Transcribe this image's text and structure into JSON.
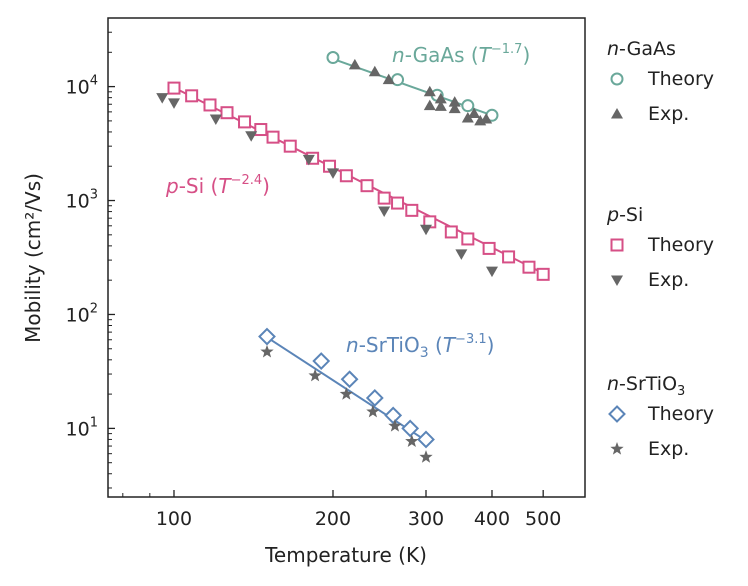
{
  "chart_data": {
    "type": "scatter",
    "title": "",
    "xlabel": "Temperature (K)",
    "ylabel": "Mobility (cm²/Vs)",
    "xscale": "log",
    "yscale": "log",
    "xlim": [
      75,
      600
    ],
    "ylim": [
      2.5,
      40000
    ],
    "xticks": [
      {
        "value": 100,
        "label": "100"
      },
      {
        "value": 200,
        "label": "200"
      },
      {
        "value": 300,
        "label": "300"
      },
      {
        "value": 400,
        "label": "400"
      },
      {
        "value": 500,
        "label": "500"
      }
    ],
    "yticks": [
      {
        "value": 10,
        "exp": "1"
      },
      {
        "value": 100,
        "exp": "2"
      },
      {
        "value": 1000,
        "exp": "3"
      },
      {
        "value": 10000,
        "exp": "4"
      }
    ],
    "ytick_base": "10",
    "legend_position": "right",
    "groups": [
      {
        "id": "gaas",
        "color": "#6aa89a",
        "legend_title_pre": "n",
        "legend_title_post": "-GaAs",
        "annotation": {
          "pre": "n",
          "mid": "-GaAs (",
          "T": "T",
          "exp": "−1.7",
          "post": ")"
        },
        "fit": {
          "x": [
            200,
            400
          ],
          "y": [
            17500,
            5600
          ]
        },
        "theory": {
          "label": "Theory",
          "marker": "circle",
          "x": [
            200,
            265,
            315,
            360,
            400
          ],
          "y": [
            18000,
            11500,
            8400,
            6800,
            5600
          ]
        },
        "exp": {
          "label": "Exp.",
          "marker": "triangle-up",
          "x": [
            220,
            240,
            255,
            305,
            305,
            320,
            320,
            340,
            340,
            360,
            370,
            380,
            390
          ],
          "y": [
            15500,
            13500,
            11500,
            9000,
            6800,
            7800,
            6700,
            7300,
            6400,
            5300,
            5800,
            5000,
            5200
          ]
        }
      },
      {
        "id": "psi",
        "color": "#d64f86",
        "legend_title_pre": "p",
        "legend_title_post": "-Si",
        "annotation": {
          "pre": "p",
          "mid": "-Si (",
          "T": "T",
          "exp": "−2.4",
          "post": ")"
        },
        "fit": {
          "x": [
            100,
            500
          ],
          "y": [
            9800,
            230
          ]
        },
        "theory": {
          "label": "Theory",
          "marker": "square",
          "x": [
            100,
            108,
            117,
            126,
            136,
            146,
            154,
            166,
            183,
            197,
            212,
            232,
            250,
            265,
            282,
            305,
            335,
            360,
            395,
            430,
            470,
            500
          ],
          "y": [
            9700,
            8300,
            6900,
            5900,
            4900,
            4200,
            3600,
            3000,
            2350,
            2000,
            1650,
            1350,
            1050,
            950,
            820,
            650,
            530,
            460,
            380,
            320,
            260,
            225
          ]
        },
        "exp": {
          "label": "Exp.",
          "marker": "triangle-down",
          "x": [
            95,
            100,
            120,
            140,
            180,
            200,
            250,
            300,
            350,
            400
          ],
          "y": [
            8000,
            7200,
            5200,
            3700,
            2300,
            1750,
            810,
            560,
            340,
            240
          ]
        }
      },
      {
        "id": "srtio3",
        "color": "#5b85b8",
        "legend_title_pre": "n",
        "legend_title_post": "-SrTiO",
        "legend_title_sub": "3",
        "annotation": {
          "pre": "n",
          "mid": "-SrTiO",
          "sub": "3",
          "mid2": " (",
          "T": "T",
          "exp": "−3.1",
          "post": ")"
        },
        "fit": {
          "x": [
            150,
            300
          ],
          "y": [
            63,
            7.8
          ]
        },
        "theory": {
          "label": "Theory",
          "marker": "diamond",
          "x": [
            150,
            190,
            215,
            240,
            260,
            280,
            300
          ],
          "y": [
            64,
            39,
            27,
            18.5,
            13,
            10,
            8
          ]
        },
        "exp": {
          "label": "Exp.",
          "marker": "star",
          "x": [
            150,
            185,
            212,
            238,
            262,
            282,
            300
          ],
          "y": [
            47,
            29,
            20,
            14,
            10.5,
            7.7,
            5.6
          ]
        }
      }
    ]
  }
}
